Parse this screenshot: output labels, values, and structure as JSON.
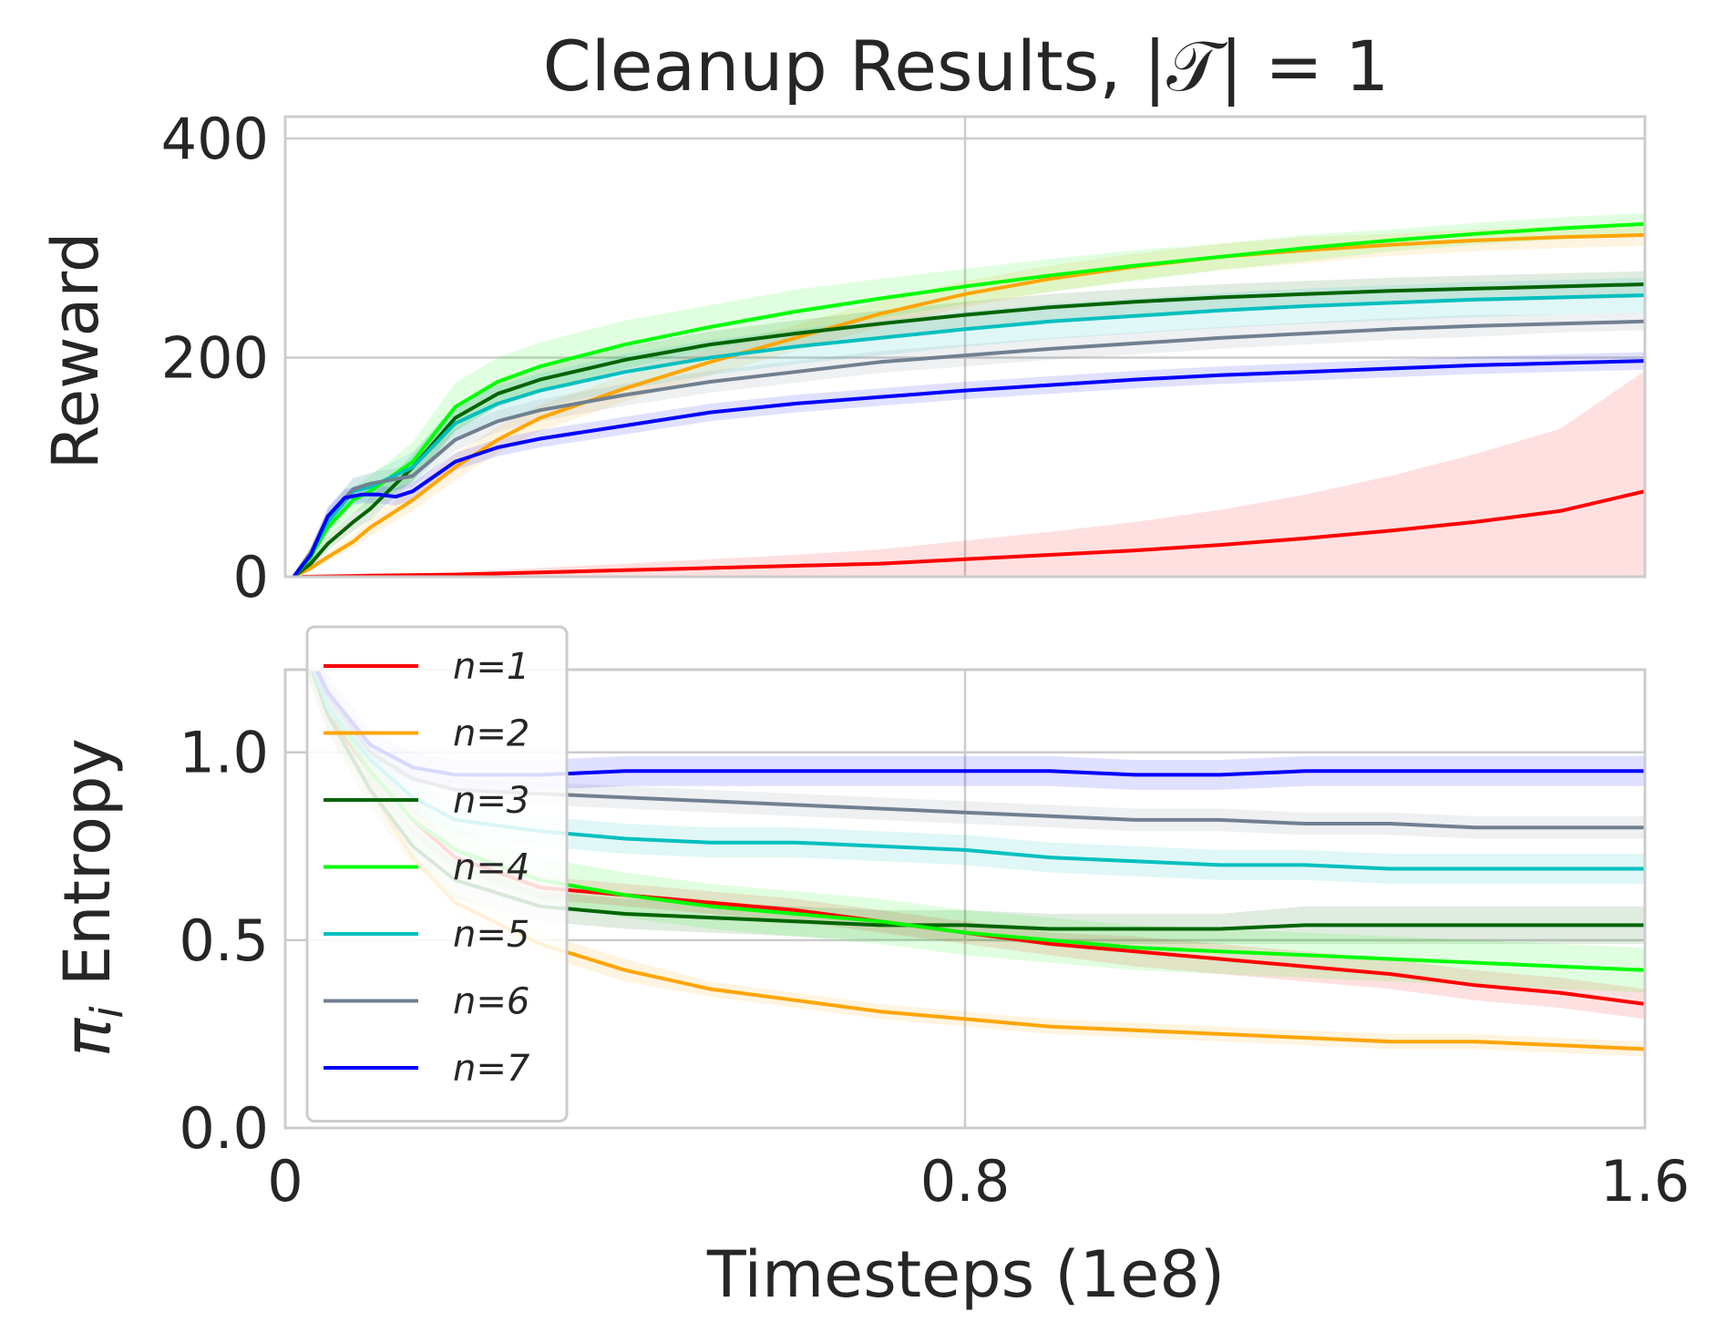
{
  "chart_data": [
    {
      "type": "line",
      "panel": "top",
      "title": "Cleanup Results, |𝒯| = 1",
      "xlabel": "",
      "ylabel": "Reward",
      "xlim": [
        0,
        1.6
      ],
      "ylim": [
        0,
        420
      ],
      "xticks": [
        0,
        0.8,
        1.6
      ],
      "yticks": [
        0,
        200,
        400
      ],
      "ytick_labels": [
        "0",
        "200",
        "400"
      ],
      "grid": true,
      "shaded_band": true,
      "series": [
        {
          "name": "n=1",
          "color": "#ff0000",
          "x": [
            0.02,
            0.1,
            0.2,
            0.3,
            0.4,
            0.5,
            0.6,
            0.7,
            0.8,
            0.9,
            1.0,
            1.1,
            1.2,
            1.3,
            1.4,
            1.5,
            1.6
          ],
          "y": [
            0,
            1,
            2,
            4,
            6,
            8,
            10,
            12,
            16,
            20,
            24,
            29,
            35,
            42,
            50,
            60,
            78
          ],
          "band": [
            0,
            1,
            2,
            4,
            6,
            8,
            10,
            13,
            17,
            21,
            26,
            32,
            40,
            50,
            62,
            75,
            110
          ]
        },
        {
          "name": "n=2",
          "color": "#ffa500",
          "x": [
            0.01,
            0.03,
            0.05,
            0.08,
            0.1,
            0.15,
            0.2,
            0.25,
            0.3,
            0.4,
            0.5,
            0.6,
            0.7,
            0.8,
            0.9,
            1.0,
            1.1,
            1.2,
            1.3,
            1.4,
            1.5,
            1.6
          ],
          "y": [
            0,
            8,
            18,
            32,
            45,
            70,
            100,
            125,
            145,
            172,
            196,
            218,
            240,
            258,
            272,
            283,
            292,
            298,
            303,
            307,
            310,
            312
          ],
          "band": [
            2,
            3,
            4,
            6,
            8,
            10,
            12,
            12,
            12,
            12,
            12,
            12,
            12,
            12,
            12,
            12,
            12,
            12,
            10,
            10,
            10,
            10
          ]
        },
        {
          "name": "n=3",
          "color": "#006400",
          "x": [
            0.01,
            0.03,
            0.05,
            0.08,
            0.1,
            0.15,
            0.2,
            0.25,
            0.3,
            0.4,
            0.5,
            0.6,
            0.7,
            0.8,
            0.9,
            1.0,
            1.1,
            1.2,
            1.3,
            1.4,
            1.5,
            1.6
          ],
          "y": [
            0,
            12,
            30,
            50,
            62,
            100,
            145,
            167,
            180,
            198,
            212,
            222,
            231,
            239,
            246,
            251,
            255,
            258,
            261,
            263,
            265,
            267
          ],
          "band": [
            2,
            4,
            6,
            8,
            10,
            12,
            12,
            12,
            12,
            12,
            12,
            12,
            12,
            12,
            12,
            12,
            12,
            12,
            12,
            12,
            12,
            12
          ]
        },
        {
          "name": "n=4",
          "color": "#00ff00",
          "x": [
            0.01,
            0.03,
            0.05,
            0.08,
            0.1,
            0.15,
            0.2,
            0.25,
            0.3,
            0.4,
            0.5,
            0.6,
            0.7,
            0.8,
            0.9,
            1.0,
            1.1,
            1.2,
            1.3,
            1.4,
            1.5,
            1.6
          ],
          "y": [
            0,
            18,
            45,
            70,
            78,
            105,
            155,
            178,
            192,
            212,
            228,
            242,
            254,
            265,
            275,
            284,
            292,
            300,
            307,
            313,
            318,
            322
          ],
          "band": [
            3,
            6,
            10,
            12,
            14,
            18,
            22,
            22,
            22,
            22,
            20,
            20,
            18,
            16,
            15,
            14,
            12,
            12,
            10,
            10,
            10,
            10
          ]
        },
        {
          "name": "n=5",
          "color": "#00bfbf",
          "x": [
            0.01,
            0.03,
            0.05,
            0.08,
            0.1,
            0.15,
            0.2,
            0.25,
            0.3,
            0.4,
            0.5,
            0.6,
            0.7,
            0.8,
            0.9,
            1.0,
            1.1,
            1.2,
            1.3,
            1.4,
            1.5,
            1.6
          ],
          "y": [
            0,
            20,
            50,
            78,
            82,
            100,
            140,
            158,
            170,
            187,
            200,
            210,
            218,
            226,
            233,
            238,
            243,
            247,
            250,
            253,
            255,
            257
          ],
          "band": [
            3,
            6,
            10,
            12,
            12,
            14,
            16,
            16,
            16,
            16,
            16,
            16,
            16,
            16,
            16,
            16,
            16,
            16,
            16,
            16,
            16,
            16
          ]
        },
        {
          "name": "n=6",
          "color": "#708090",
          "x": [
            0.01,
            0.03,
            0.05,
            0.08,
            0.1,
            0.15,
            0.2,
            0.25,
            0.3,
            0.4,
            0.5,
            0.6,
            0.7,
            0.8,
            0.9,
            1.0,
            1.1,
            1.2,
            1.3,
            1.4,
            1.5,
            1.6
          ],
          "y": [
            0,
            22,
            55,
            80,
            85,
            92,
            125,
            142,
            152,
            166,
            178,
            187,
            196,
            202,
            208,
            213,
            218,
            222,
            226,
            229,
            231,
            233
          ],
          "band": [
            3,
            6,
            8,
            10,
            10,
            10,
            10,
            10,
            10,
            10,
            10,
            10,
            10,
            10,
            10,
            10,
            10,
            10,
            10,
            10,
            8,
            8
          ]
        },
        {
          "name": "n=7",
          "color": "#0000ff",
          "x": [
            0.01,
            0.03,
            0.05,
            0.07,
            0.09,
            0.11,
            0.13,
            0.15,
            0.2,
            0.25,
            0.3,
            0.4,
            0.5,
            0.6,
            0.7,
            0.8,
            0.9,
            1.0,
            1.1,
            1.2,
            1.3,
            1.4,
            1.5,
            1.6
          ],
          "y": [
            0,
            20,
            55,
            72,
            75,
            75,
            73,
            78,
            105,
            118,
            126,
            138,
            150,
            158,
            164,
            170,
            175,
            180,
            184,
            187,
            190,
            193,
            195,
            197
          ],
          "band": [
            3,
            6,
            8,
            8,
            8,
            8,
            8,
            8,
            8,
            8,
            8,
            8,
            8,
            8,
            8,
            8,
            8,
            8,
            8,
            8,
            8,
            8,
            8,
            8
          ]
        }
      ]
    },
    {
      "type": "line",
      "panel": "bottom",
      "xlabel": "Timesteps (1e8)",
      "ylabel": "π_i Entropy",
      "xlim": [
        0,
        1.6
      ],
      "ylim": [
        0,
        1.22
      ],
      "xticks": [
        0,
        0.8,
        1.6
      ],
      "xtick_labels": [
        "0",
        "0.8",
        "1.6"
      ],
      "yticks": [
        0,
        0.5,
        1.0
      ],
      "ytick_labels": [
        "0.0",
        "0.5",
        "1.0"
      ],
      "grid": true,
      "shaded_band": true,
      "legend": "upper-left",
      "series": [
        {
          "name": "n=1",
          "color": "#ff0000",
          "x": [
            0.02,
            0.05,
            0.1,
            0.15,
            0.2,
            0.3,
            0.4,
            0.5,
            0.6,
            0.7,
            0.8,
            0.9,
            1.0,
            1.1,
            1.2,
            1.3,
            1.4,
            1.5,
            1.6
          ],
          "y": [
            1.3,
            1.1,
            0.95,
            0.82,
            0.72,
            0.64,
            0.62,
            0.6,
            0.58,
            0.55,
            0.52,
            0.49,
            0.47,
            0.45,
            0.43,
            0.41,
            0.38,
            0.36,
            0.33
          ],
          "band": [
            0.06,
            0.05,
            0.04,
            0.04,
            0.03,
            0.03,
            0.03,
            0.03,
            0.03,
            0.03,
            0.03,
            0.03,
            0.04,
            0.04,
            0.04,
            0.04,
            0.04,
            0.04,
            0.04
          ]
        },
        {
          "name": "n=2",
          "color": "#ffa500",
          "x": [
            0.02,
            0.05,
            0.1,
            0.15,
            0.2,
            0.3,
            0.4,
            0.5,
            0.6,
            0.7,
            0.8,
            0.9,
            1.0,
            1.1,
            1.2,
            1.3,
            1.4,
            1.5,
            1.6
          ],
          "y": [
            1.3,
            1.1,
            0.9,
            0.72,
            0.6,
            0.49,
            0.42,
            0.37,
            0.34,
            0.31,
            0.29,
            0.27,
            0.26,
            0.25,
            0.24,
            0.23,
            0.23,
            0.22,
            0.21
          ],
          "band": [
            0.06,
            0.05,
            0.04,
            0.04,
            0.03,
            0.03,
            0.03,
            0.02,
            0.02,
            0.02,
            0.02,
            0.02,
            0.02,
            0.02,
            0.02,
            0.02,
            0.02,
            0.02,
            0.02
          ]
        },
        {
          "name": "n=3",
          "color": "#006400",
          "x": [
            0.02,
            0.05,
            0.1,
            0.15,
            0.2,
            0.3,
            0.4,
            0.5,
            0.6,
            0.7,
            0.8,
            0.9,
            1.0,
            1.1,
            1.2,
            1.3,
            1.4,
            1.5,
            1.6
          ],
          "y": [
            1.3,
            1.1,
            0.9,
            0.75,
            0.66,
            0.59,
            0.57,
            0.56,
            0.55,
            0.54,
            0.54,
            0.53,
            0.53,
            0.53,
            0.54,
            0.54,
            0.54,
            0.54,
            0.54
          ],
          "band": [
            0.06,
            0.05,
            0.05,
            0.05,
            0.05,
            0.04,
            0.04,
            0.04,
            0.04,
            0.04,
            0.04,
            0.04,
            0.04,
            0.04,
            0.05,
            0.05,
            0.05,
            0.05,
            0.05
          ]
        },
        {
          "name": "n=4",
          "color": "#00ff00",
          "x": [
            0.02,
            0.05,
            0.1,
            0.15,
            0.2,
            0.3,
            0.4,
            0.5,
            0.6,
            0.7,
            0.8,
            0.9,
            1.0,
            1.1,
            1.2,
            1.3,
            1.4,
            1.5,
            1.6
          ],
          "y": [
            1.3,
            1.12,
            0.95,
            0.82,
            0.74,
            0.66,
            0.62,
            0.59,
            0.57,
            0.55,
            0.52,
            0.5,
            0.48,
            0.47,
            0.46,
            0.45,
            0.44,
            0.43,
            0.42
          ],
          "band": [
            0.06,
            0.06,
            0.06,
            0.06,
            0.06,
            0.06,
            0.06,
            0.06,
            0.06,
            0.06,
            0.06,
            0.06,
            0.06,
            0.06,
            0.06,
            0.06,
            0.06,
            0.06,
            0.06
          ]
        },
        {
          "name": "n=5",
          "color": "#00bfbf",
          "x": [
            0.02,
            0.05,
            0.1,
            0.15,
            0.2,
            0.3,
            0.4,
            0.5,
            0.6,
            0.7,
            0.8,
            0.9,
            1.0,
            1.1,
            1.2,
            1.3,
            1.4,
            1.5,
            1.6
          ],
          "y": [
            1.3,
            1.12,
            0.98,
            0.88,
            0.82,
            0.79,
            0.77,
            0.76,
            0.76,
            0.75,
            0.74,
            0.72,
            0.71,
            0.7,
            0.7,
            0.69,
            0.69,
            0.69,
            0.69
          ],
          "band": [
            0.05,
            0.05,
            0.04,
            0.04,
            0.04,
            0.04,
            0.04,
            0.04,
            0.04,
            0.04,
            0.04,
            0.04,
            0.04,
            0.04,
            0.04,
            0.04,
            0.04,
            0.04,
            0.04
          ]
        },
        {
          "name": "n=6",
          "color": "#708090",
          "x": [
            0.02,
            0.05,
            0.1,
            0.15,
            0.2,
            0.3,
            0.4,
            0.5,
            0.6,
            0.7,
            0.8,
            0.9,
            1.0,
            1.1,
            1.2,
            1.3,
            1.4,
            1.5,
            1.6
          ],
          "y": [
            1.3,
            1.15,
            1.0,
            0.93,
            0.9,
            0.89,
            0.88,
            0.87,
            0.86,
            0.85,
            0.84,
            0.83,
            0.82,
            0.82,
            0.81,
            0.81,
            0.8,
            0.8,
            0.8
          ],
          "band": [
            0.04,
            0.04,
            0.03,
            0.03,
            0.03,
            0.03,
            0.03,
            0.03,
            0.03,
            0.03,
            0.03,
            0.03,
            0.03,
            0.03,
            0.03,
            0.03,
            0.03,
            0.03,
            0.03
          ]
        },
        {
          "name": "n=7",
          "color": "#0000ff",
          "x": [
            0.02,
            0.05,
            0.1,
            0.15,
            0.2,
            0.3,
            0.4,
            0.5,
            0.6,
            0.7,
            0.8,
            0.9,
            1.0,
            1.1,
            1.2,
            1.3,
            1.4,
            1.5,
            1.6
          ],
          "y": [
            1.3,
            1.16,
            1.02,
            0.96,
            0.94,
            0.94,
            0.95,
            0.95,
            0.95,
            0.95,
            0.95,
            0.95,
            0.94,
            0.94,
            0.95,
            0.95,
            0.95,
            0.95,
            0.95
          ],
          "band": [
            0.05,
            0.05,
            0.04,
            0.04,
            0.04,
            0.04,
            0.04,
            0.04,
            0.04,
            0.04,
            0.04,
            0.04,
            0.04,
            0.04,
            0.04,
            0.04,
            0.04,
            0.04,
            0.04
          ]
        }
      ]
    }
  ],
  "text": {
    "title": "Cleanup Results, |𝒯| = 1",
    "top_ylabel": "Reward",
    "bottom_ylabel": "π",
    "bottom_ylabel_sub": "i",
    "bottom_ylabel_rest": " Entropy",
    "xlabel": "Timesteps (1e8)"
  }
}
